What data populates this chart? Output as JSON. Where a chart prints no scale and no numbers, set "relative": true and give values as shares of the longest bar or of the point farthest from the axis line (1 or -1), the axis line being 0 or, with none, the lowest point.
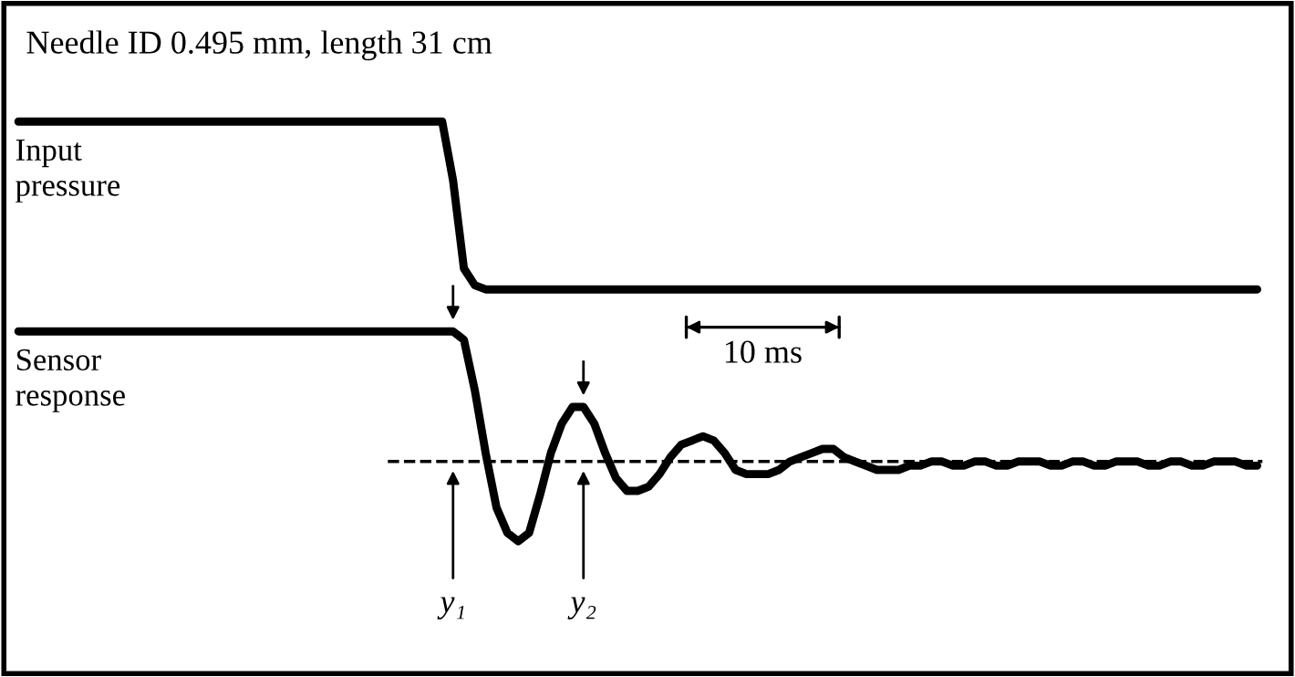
{
  "chart_data": {
    "type": "line",
    "relative": true,
    "title": "Needle ID 0.495 mm, length 31 cm",
    "categories": [
      null,
      null,
      null,
      null,
      null,
      null,
      null,
      null,
      null,
      null,
      null,
      null,
      null,
      null,
      null,
      null,
      null,
      null,
      null,
      null,
      null,
      null,
      null,
      null,
      null,
      null,
      null,
      null,
      null,
      null,
      null,
      null,
      null,
      null,
      null,
      null,
      null,
      null,
      null,
      null,
      null,
      null,
      null,
      null,
      null,
      null,
      null,
      null,
      null,
      null,
      null,
      null,
      null,
      null,
      null,
      null,
      null,
      null,
      null,
      null,
      null,
      null,
      null,
      null,
      null,
      null,
      null,
      null,
      null,
      null,
      null,
      null,
      null,
      null,
      null,
      null,
      null,
      null,
      null,
      null,
      null,
      null,
      null,
      null,
      null,
      null,
      null,
      null,
      null,
      null,
      null,
      null,
      null,
      null,
      null,
      null,
      null,
      null,
      null,
      null,
      null,
      null,
      null,
      null,
      null,
      null,
      null,
      null,
      null,
      null,
      null,
      null,
      null,
      null,
      null
    ],
    "series": [
      {
        "name": "Input pressure",
        "color": "#000000",
        "values": [
          1,
          1,
          1,
          1,
          1,
          1,
          1,
          1,
          1,
          1,
          1,
          1,
          1,
          1,
          1,
          1,
          1,
          1,
          1,
          1,
          1,
          1,
          1,
          1,
          1,
          1,
          1,
          1,
          1,
          1,
          1,
          1,
          1,
          1,
          1,
          1,
          1,
          1,
          1,
          1,
          0.86,
          0.65,
          0.61,
          0.6,
          0.6,
          0.6,
          0.6,
          0.6,
          0.6,
          0.6,
          0.6,
          0.6,
          0.6,
          0.6,
          0.6,
          0.6,
          0.6,
          0.6,
          0.6,
          0.6,
          0.6,
          0.6,
          0.6,
          0.6,
          0.6,
          0.6,
          0.6,
          0.6,
          0.6,
          0.6,
          0.6,
          0.6,
          0.6,
          0.6,
          0.6,
          0.6,
          0.6,
          0.6,
          0.6,
          0.6,
          0.6,
          0.6,
          0.6,
          0.6,
          0.6,
          0.6,
          0.6,
          0.6,
          0.6,
          0.6,
          0.6,
          0.6,
          0.6,
          0.6,
          0.6,
          0.6,
          0.6,
          0.6,
          0.6,
          0.6,
          0.6,
          0.6,
          0.6,
          0.6,
          0.6,
          0.6,
          0.6,
          0.6,
          0.6,
          0.6,
          0.6,
          0.6,
          0.6,
          0.6,
          0.6
        ]
      },
      {
        "name": "Sensor response",
        "color": "#000000",
        "values": [
          0.5,
          0.5,
          0.5,
          0.5,
          0.5,
          0.5,
          0.5,
          0.5,
          0.5,
          0.5,
          0.5,
          0.5,
          0.5,
          0.5,
          0.5,
          0.5,
          0.5,
          0.5,
          0.5,
          0.5,
          0.5,
          0.5,
          0.5,
          0.5,
          0.5,
          0.5,
          0.5,
          0.5,
          0.5,
          0.5,
          0.5,
          0.5,
          0.5,
          0.5,
          0.5,
          0.5,
          0.5,
          0.5,
          0.5,
          0.5,
          0.5,
          0.48,
          0.36,
          0.21,
          0.08,
          0.02,
          0,
          0.02,
          0.11,
          0.21,
          0.28,
          0.32,
          0.32,
          0.28,
          0.21,
          0.15,
          0.12,
          0.12,
          0.13,
          0.16,
          0.2,
          0.23,
          0.24,
          0.25,
          0.24,
          0.21,
          0.17,
          0.16,
          0.16,
          0.16,
          0.17,
          0.19,
          0.2,
          0.21,
          0.22,
          0.22,
          0.2,
          0.19,
          0.18,
          0.17,
          0.17,
          0.17,
          0.18,
          0.18,
          0.19,
          0.19,
          0.18,
          0.18,
          0.19,
          0.19,
          0.18,
          0.18,
          0.19,
          0.19,
          0.19,
          0.18,
          0.18,
          0.19,
          0.19,
          0.18,
          0.18,
          0.19,
          0.19,
          0.19,
          0.18,
          0.18,
          0.19,
          0.19,
          0.18,
          0.18,
          0.19,
          0.19,
          0.19,
          0.18,
          0.18
        ]
      }
    ],
    "ref_lines": [
      {
        "axis": "y",
        "value": 0.19,
        "line_style": "dashed",
        "color": "#000000"
      }
    ],
    "annotations": [
      "y₁",
      "y₂",
      "10 ms"
    ],
    "legend": false,
    "marker": "none",
    "line_style": "solid"
  }
}
